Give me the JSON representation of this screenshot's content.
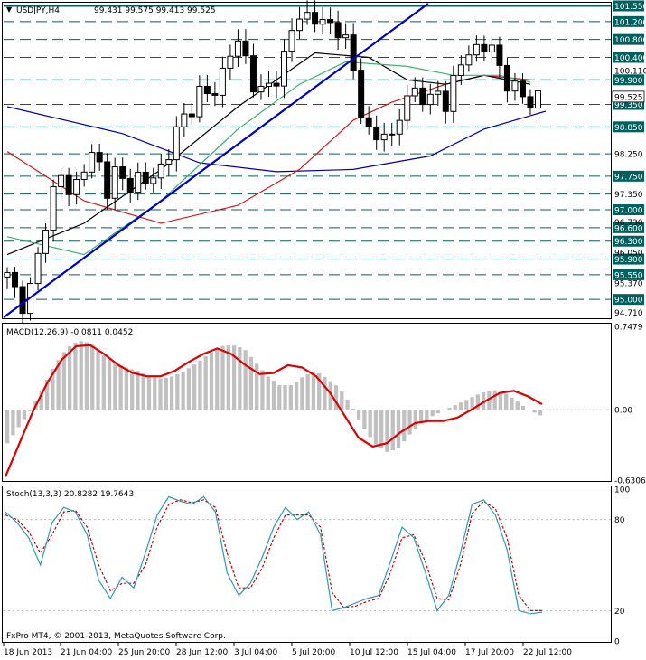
{
  "header": {
    "symbol": "USDJPY,H4",
    "ohlc": "99.431 99.575 99.413 99.525"
  },
  "footer": {
    "copyright": "FxPro MT4, © 2001-2013, MetaQuotes Software Corp."
  },
  "colors": {
    "bull": "#ffffff",
    "bear": "#000000",
    "ma_fast": "#3cb371",
    "ma_red": "#d01818",
    "ma_black": "#000000",
    "ma_blue": "#0000aa",
    "trendline": "#0000cc",
    "level": "#006060",
    "price_box": "#006060",
    "macd_hist": "#c0c0c0",
    "macd_signal": "#dd0000",
    "stoch_main": "#2a9cb0",
    "stoch_signal": "#cc0000"
  },
  "chart_data": [
    {
      "type": "candlestick",
      "name": "price",
      "ylim": [
        94.6,
        101.6
      ],
      "ticks_plain": [
        "100.110",
        "99.525",
        "98.250",
        "97.350",
        "96.730",
        "96.050",
        "95.370",
        "94.710"
      ],
      "ticks_boxed": [
        "101.550",
        "101.200",
        "100.800",
        "100.400",
        "99.900",
        "99.350",
        "98.850",
        "97.750",
        "97.000",
        "96.600",
        "96.300",
        "95.900",
        "95.550",
        "95.000"
      ],
      "levels": [
        101.55,
        101.2,
        100.8,
        100.4,
        99.9,
        99.35,
        98.85,
        98.25,
        97.75,
        97.35,
        97.0,
        96.6,
        96.3,
        95.9,
        95.55,
        95.0
      ],
      "x_labels": [
        "18 Jun 2013",
        "21 Jun 04:00",
        "25 Jun 20:00",
        "28 Jun 12:00",
        "3 Jul 04:00",
        "5 Jul 20:00",
        "10 Jul 12:00",
        "15 Jul 04:00",
        "17 Jul 20:00",
        "22 Jul 12:00"
      ],
      "close_path": [
        95.5,
        95.1,
        94.9,
        95.5,
        96.6,
        97.4,
        97.8,
        97.2,
        97.9,
        98.2,
        98.0,
        97.5,
        97.9,
        97.4,
        97.8,
        97.6,
        97.7,
        98.0,
        98.5,
        98.9,
        99.3,
        99.6,
        99.5,
        99.8,
        100.3,
        100.8,
        100.4,
        99.8,
        99.5,
        99.9,
        100.2,
        100.9,
        101.4,
        101.3,
        101.2,
        101.1,
        101.15,
        100.7,
        99.9,
        99.0,
        98.4,
        98.8,
        98.6,
        99.2,
        99.5,
        99.8,
        99.3,
        99.6,
        99.4,
        100.0,
        100.4,
        100.6,
        100.7,
        100.5,
        100.1,
        99.8,
        99.5,
        99.45,
        99.525
      ],
      "trendline": [
        [
          0,
          94.6
        ],
        [
          58,
          101.55
        ]
      ],
      "ma_blue": [
        [
          0,
          99.3
        ],
        [
          15,
          98.7
        ],
        [
          25,
          98.05
        ],
        [
          35,
          97.85
        ],
        [
          45,
          97.9
        ],
        [
          55,
          98.2
        ],
        [
          62,
          98.8
        ],
        [
          70,
          99.2
        ]
      ],
      "ma_red": [
        [
          0,
          98.3
        ],
        [
          10,
          97.2
        ],
        [
          20,
          96.7
        ],
        [
          30,
          97.1
        ],
        [
          38,
          97.9
        ],
        [
          45,
          99.0
        ],
        [
          50,
          99.4
        ],
        [
          57,
          99.8
        ],
        [
          62,
          100.0
        ],
        [
          68,
          99.9
        ]
      ],
      "ma_black": [
        [
          0,
          96.0
        ],
        [
          10,
          96.7
        ],
        [
          20,
          97.9
        ],
        [
          30,
          99.3
        ],
        [
          40,
          100.5
        ],
        [
          47,
          100.4
        ],
        [
          52,
          99.9
        ],
        [
          57,
          99.8
        ],
        [
          62,
          100.0
        ],
        [
          68,
          99.8
        ]
      ],
      "ma_fast": [
        [
          0,
          96.4
        ],
        [
          10,
          96.0
        ],
        [
          20,
          97.2
        ],
        [
          30,
          98.8
        ],
        [
          38,
          99.8
        ],
        [
          44,
          100.3
        ],
        [
          52,
          100.2
        ],
        [
          58,
          100.0
        ],
        [
          64,
          100.0
        ],
        [
          68,
          99.85
        ]
      ]
    },
    {
      "type": "bar",
      "name": "macd",
      "label": "MACD(12,26,9) -0.0811 0.0452",
      "ylim": [
        -0.6306,
        0.7479
      ],
      "ticks": [
        "0.7479",
        "0.00",
        "-0.6306"
      ],
      "histogram": [
        -0.3,
        -0.15,
        0.0,
        0.2,
        0.4,
        0.55,
        0.62,
        0.6,
        0.5,
        0.42,
        0.38,
        0.35,
        0.3,
        0.28,
        0.3,
        0.35,
        0.42,
        0.5,
        0.57,
        0.58,
        0.55,
        0.42,
        0.3,
        0.22,
        0.22,
        0.3,
        0.35,
        0.28,
        0.2,
        0.05,
        -0.15,
        -0.3,
        -0.38,
        -0.35,
        -0.22,
        -0.12,
        -0.05,
        0.0,
        0.05,
        0.1,
        0.15,
        0.18,
        0.15,
        0.08,
        0.0,
        -0.05
      ],
      "signal": [
        -0.6,
        -0.3,
        0.0,
        0.25,
        0.45,
        0.57,
        0.58,
        0.5,
        0.4,
        0.33,
        0.3,
        0.3,
        0.35,
        0.43,
        0.5,
        0.55,
        0.5,
        0.4,
        0.32,
        0.33,
        0.4,
        0.38,
        0.3,
        0.15,
        -0.05,
        -0.25,
        -0.33,
        -0.3,
        -0.2,
        -0.12,
        -0.1,
        -0.1,
        -0.07,
        0.0,
        0.08,
        0.15,
        0.17,
        0.12,
        0.05
      ]
    },
    {
      "type": "line",
      "name": "stochastic",
      "label": "Stoch(13,3,3) 20.8282 19.7643",
      "ylim": [
        0,
        100
      ],
      "ticks": [
        "100",
        "80",
        "20",
        "0"
      ],
      "main": [
        85,
        78,
        68,
        50,
        78,
        88,
        85,
        70,
        40,
        28,
        42,
        35,
        58,
        83,
        95,
        92,
        90,
        95,
        85,
        45,
        30,
        38,
        55,
        75,
        88,
        80,
        85,
        70,
        20,
        22,
        25,
        28,
        30,
        52,
        75,
        68,
        45,
        20,
        30,
        58,
        90,
        93,
        83,
        60,
        20,
        18,
        19
      ],
      "signal": [
        83,
        80,
        72,
        58,
        70,
        85,
        86,
        75,
        50,
        33,
        38,
        38,
        50,
        75,
        90,
        93,
        91,
        93,
        88,
        58,
        35,
        35,
        48,
        68,
        83,
        83,
        83,
        75,
        32,
        22,
        23,
        26,
        28,
        45,
        68,
        70,
        52,
        28,
        27,
        50,
        84,
        92,
        87,
        68,
        30,
        20,
        20
      ]
    }
  ]
}
